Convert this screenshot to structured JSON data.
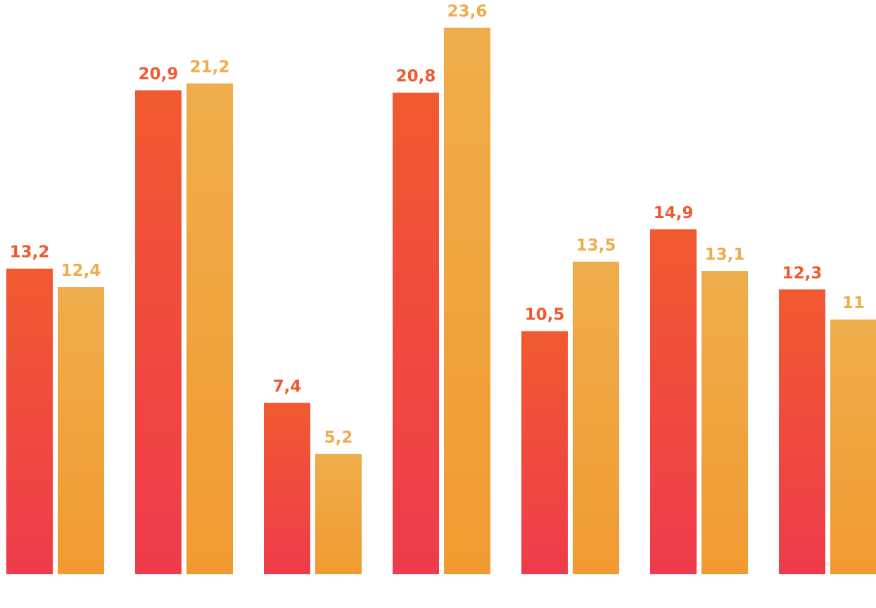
{
  "chart_data": {
    "type": "bar",
    "categories": [
      "",
      "",
      "",
      "",
      "",
      "",
      ""
    ],
    "series": [
      {
        "values": [
          13.2,
          20.9,
          7.4,
          20.8,
          10.5,
          14.9,
          12.3
        ],
        "labels": [
          "13,2",
          "20,9",
          "7,4",
          "20,8",
          "10,5",
          "14,9",
          "12,3"
        ],
        "color_top": "#f15a30",
        "color_bottom": "#ef3b4c"
      },
      {
        "values": [
          12.4,
          21.2,
          5.2,
          23.6,
          13.5,
          13.1,
          11
        ],
        "labels": [
          "12,4",
          "21,2",
          "5,2",
          "23,6",
          "13,5",
          "13,1",
          "11"
        ],
        "color_top": "#efad4b",
        "color_bottom": "#f19a31"
      }
    ],
    "title": "",
    "xlabel": "",
    "ylabel": "",
    "ylim": [
      0,
      25
    ],
    "grid": false,
    "legend": "none"
  }
}
